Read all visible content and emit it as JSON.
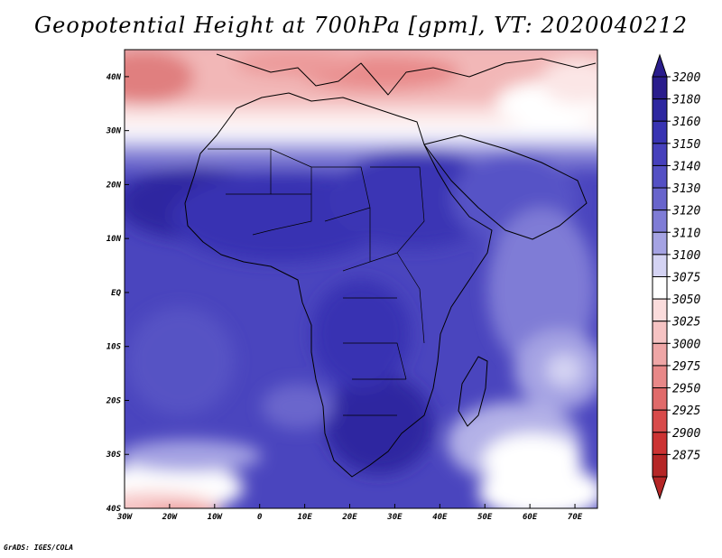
{
  "title": "Geopotential Height at 700hPa [gpm], VT: 2020040212",
  "credit": "GrADS: IGES/COLA",
  "map": {
    "region": "Africa",
    "lon_range": [
      -30,
      75
    ],
    "lat_range": [
      -40,
      45
    ],
    "lon_ticks": [
      {
        "value": -30,
        "label": "30W"
      },
      {
        "value": -20,
        "label": "20W"
      },
      {
        "value": -10,
        "label": "10W"
      },
      {
        "value": 0,
        "label": "0"
      },
      {
        "value": 10,
        "label": "10E"
      },
      {
        "value": 20,
        "label": "20E"
      },
      {
        "value": 30,
        "label": "30E"
      },
      {
        "value": 40,
        "label": "40E"
      },
      {
        "value": 50,
        "label": "50E"
      },
      {
        "value": 60,
        "label": "60E"
      },
      {
        "value": 70,
        "label": "70E"
      }
    ],
    "lat_ticks": [
      {
        "value": 40,
        "label": "40N"
      },
      {
        "value": 30,
        "label": "30N"
      },
      {
        "value": 20,
        "label": "20N"
      },
      {
        "value": 10,
        "label": "10N"
      },
      {
        "value": 0,
        "label": "EQ"
      },
      {
        "value": -10,
        "label": "10S"
      },
      {
        "value": -20,
        "label": "20S"
      },
      {
        "value": -30,
        "label": "30S"
      },
      {
        "value": -40,
        "label": "40S"
      }
    ]
  },
  "colorbar": {
    "levels": [
      {
        "label": "3200",
        "color": "#2a1d8c"
      },
      {
        "label": "3180",
        "color": "#2d27a0"
      },
      {
        "label": "3160",
        "color": "#3833b2"
      },
      {
        "label": "3150",
        "color": "#4640bc"
      },
      {
        "label": "3140",
        "color": "#5450c4"
      },
      {
        "label": "3130",
        "color": "#6864cc"
      },
      {
        "label": "3120",
        "color": "#7f7cd6"
      },
      {
        "label": "3110",
        "color": "#a5a3e3"
      },
      {
        "label": "3100",
        "color": "#d4d3f3"
      },
      {
        "label": "3075",
        "color": "#ffffff"
      },
      {
        "label": "3050",
        "color": "#fbdcdc"
      },
      {
        "label": "3025",
        "color": "#f6c3c3"
      },
      {
        "label": "3000",
        "color": "#efa6a6"
      },
      {
        "label": "2975",
        "color": "#e88888"
      },
      {
        "label": "2950",
        "color": "#e06a6a"
      },
      {
        "label": "2925",
        "color": "#d84b4b"
      },
      {
        "label": "2900",
        "color": "#cc3333"
      },
      {
        "label": "2875",
        "color": "#b52626"
      }
    ]
  }
}
